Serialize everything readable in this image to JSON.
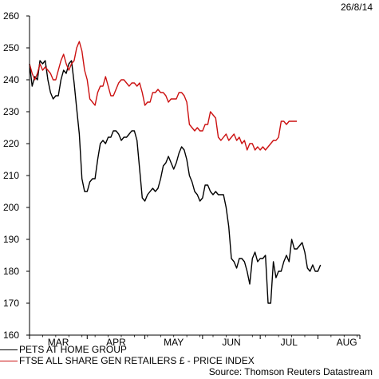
{
  "date_label": "26/8/14",
  "source": "Source: Thomson Reuters Datastream",
  "colors": {
    "pets": "#000000",
    "ftse": "#cc1111"
  },
  "chart_data": {
    "type": "line",
    "title": "",
    "xlabel": "",
    "ylabel": "",
    "ylim": [
      160,
      260
    ],
    "yticks": [
      160,
      170,
      180,
      190,
      200,
      210,
      220,
      230,
      240,
      250,
      260
    ],
    "xlim": [
      0,
      126
    ],
    "x_ticks": [
      {
        "label": "MAR",
        "x": 11
      },
      {
        "label": "APR",
        "x": 33
      },
      {
        "label": "MAY",
        "x": 55
      },
      {
        "label": "JUN",
        "x": 77
      },
      {
        "label": "JUL",
        "x": 99
      },
      {
        "label": "AUG",
        "x": 121
      }
    ],
    "legend_position": "bottom-left",
    "series": [
      {
        "name": "PETS AT HOME GROUP",
        "color": "#000000",
        "points": [
          [
            0,
            245
          ],
          [
            1,
            238
          ],
          [
            2,
            241
          ],
          [
            3,
            240
          ],
          [
            4,
            246
          ],
          [
            5,
            245
          ],
          [
            6,
            246
          ],
          [
            7,
            240
          ],
          [
            8,
            236
          ],
          [
            9,
            234
          ],
          [
            10,
            235
          ],
          [
            11,
            235
          ],
          [
            12,
            240
          ],
          [
            13,
            243
          ],
          [
            14,
            242
          ],
          [
            15,
            245
          ],
          [
            16,
            246
          ],
          [
            17,
            239
          ],
          [
            18,
            231
          ],
          [
            19,
            223
          ],
          [
            20,
            209
          ],
          [
            21,
            205
          ],
          [
            22,
            205
          ],
          [
            23,
            208
          ],
          [
            24,
            209
          ],
          [
            25,
            209
          ],
          [
            26,
            215
          ],
          [
            27,
            220
          ],
          [
            28,
            221
          ],
          [
            29,
            220
          ],
          [
            30,
            222
          ],
          [
            31,
            222
          ],
          [
            32,
            224
          ],
          [
            33,
            224
          ],
          [
            34,
            223
          ],
          [
            35,
            221
          ],
          [
            36,
            222
          ],
          [
            37,
            222
          ],
          [
            38,
            223
          ],
          [
            39,
            224
          ],
          [
            40,
            224
          ],
          [
            41,
            221
          ],
          [
            42,
            212
          ],
          [
            43,
            203
          ],
          [
            44,
            202
          ],
          [
            45,
            204
          ],
          [
            46,
            205
          ],
          [
            47,
            206
          ],
          [
            48,
            205
          ],
          [
            49,
            206
          ],
          [
            50,
            209
          ],
          [
            51,
            213
          ],
          [
            52,
            214
          ],
          [
            53,
            216
          ],
          [
            54,
            214
          ],
          [
            55,
            212
          ],
          [
            56,
            214
          ],
          [
            57,
            217
          ],
          [
            58,
            219
          ],
          [
            59,
            218
          ],
          [
            60,
            215
          ],
          [
            61,
            210
          ],
          [
            62,
            208
          ],
          [
            63,
            205
          ],
          [
            64,
            204
          ],
          [
            65,
            202
          ],
          [
            66,
            203
          ],
          [
            67,
            207
          ],
          [
            68,
            207
          ],
          [
            69,
            205
          ],
          [
            70,
            204
          ],
          [
            71,
            205
          ],
          [
            72,
            204
          ],
          [
            73,
            204
          ],
          [
            74,
            204
          ],
          [
            75,
            200
          ],
          [
            76,
            194
          ],
          [
            77,
            184
          ],
          [
            78,
            183
          ],
          [
            79,
            181
          ],
          [
            80,
            184
          ],
          [
            81,
            184
          ],
          [
            82,
            183
          ],
          [
            83,
            180
          ],
          [
            84,
            176
          ],
          [
            85,
            184
          ],
          [
            86,
            186
          ],
          [
            87,
            183
          ],
          [
            88,
            184
          ],
          [
            89,
            184
          ],
          [
            90,
            185
          ],
          [
            91,
            170
          ],
          [
            92,
            170
          ],
          [
            93,
            183
          ],
          [
            94,
            178
          ],
          [
            95,
            180
          ],
          [
            96,
            180
          ],
          [
            97,
            183
          ],
          [
            98,
            185
          ],
          [
            99,
            183
          ],
          [
            100,
            190
          ],
          [
            101,
            187
          ],
          [
            102,
            187
          ],
          [
            103,
            188
          ],
          [
            104,
            189
          ],
          [
            105,
            186
          ],
          [
            106,
            181
          ],
          [
            107,
            180
          ],
          [
            108,
            182
          ],
          [
            109,
            180
          ],
          [
            110,
            180
          ],
          [
            111,
            182
          ]
        ]
      },
      {
        "name": "FTSE ALL SHARE GEN RETAILERS £ - PRICE INDEX",
        "color": "#cc1111",
        "points": [
          [
            0,
            245
          ],
          [
            1,
            242
          ],
          [
            2,
            240
          ],
          [
            3,
            242
          ],
          [
            4,
            245
          ],
          [
            5,
            243
          ],
          [
            6,
            244
          ],
          [
            7,
            243
          ],
          [
            8,
            242
          ],
          [
            9,
            240
          ],
          [
            10,
            240
          ],
          [
            11,
            243
          ],
          [
            12,
            246
          ],
          [
            13,
            248
          ],
          [
            14,
            245
          ],
          [
            15,
            243
          ],
          [
            16,
            245
          ],
          [
            17,
            246
          ],
          [
            18,
            250
          ],
          [
            19,
            252
          ],
          [
            20,
            249
          ],
          [
            21,
            243
          ],
          [
            22,
            240
          ],
          [
            23,
            234
          ],
          [
            24,
            233
          ],
          [
            25,
            232
          ],
          [
            26,
            236
          ],
          [
            27,
            238
          ],
          [
            28,
            238
          ],
          [
            29,
            241
          ],
          [
            30,
            238
          ],
          [
            31,
            235
          ],
          [
            32,
            235
          ],
          [
            33,
            237
          ],
          [
            34,
            239
          ],
          [
            35,
            240
          ],
          [
            36,
            240
          ],
          [
            37,
            239
          ],
          [
            38,
            238
          ],
          [
            39,
            239
          ],
          [
            40,
            239
          ],
          [
            41,
            238
          ],
          [
            42,
            239
          ],
          [
            43,
            236
          ],
          [
            44,
            232
          ],
          [
            45,
            233
          ],
          [
            46,
            233
          ],
          [
            47,
            236
          ],
          [
            48,
            236
          ],
          [
            49,
            237
          ],
          [
            50,
            236
          ],
          [
            51,
            236
          ],
          [
            52,
            235
          ],
          [
            53,
            233
          ],
          [
            54,
            234
          ],
          [
            55,
            234
          ],
          [
            56,
            234
          ],
          [
            57,
            236
          ],
          [
            58,
            236
          ],
          [
            59,
            235
          ],
          [
            60,
            233
          ],
          [
            61,
            226
          ],
          [
            62,
            225
          ],
          [
            63,
            224
          ],
          [
            64,
            225
          ],
          [
            65,
            224
          ],
          [
            66,
            224
          ],
          [
            67,
            226
          ],
          [
            68,
            226
          ],
          [
            69,
            230
          ],
          [
            70,
            229
          ],
          [
            71,
            228
          ],
          [
            72,
            222
          ],
          [
            73,
            221
          ],
          [
            74,
            222
          ],
          [
            75,
            223
          ],
          [
            76,
            221
          ],
          [
            77,
            222
          ],
          [
            78,
            223
          ],
          [
            79,
            221
          ],
          [
            80,
            222
          ],
          [
            81,
            220
          ],
          [
            82,
            221
          ],
          [
            83,
            218
          ],
          [
            84,
            220
          ],
          [
            85,
            220
          ],
          [
            86,
            218
          ],
          [
            87,
            219
          ],
          [
            88,
            218
          ],
          [
            89,
            219
          ],
          [
            90,
            218
          ],
          [
            91,
            219
          ],
          [
            92,
            220
          ],
          [
            93,
            221
          ],
          [
            94,
            221
          ],
          [
            95,
            222
          ],
          [
            96,
            227
          ],
          [
            97,
            227
          ],
          [
            98,
            226
          ],
          [
            99,
            227
          ],
          [
            100,
            227
          ],
          [
            101,
            227
          ],
          [
            102,
            227
          ]
        ]
      }
    ]
  }
}
